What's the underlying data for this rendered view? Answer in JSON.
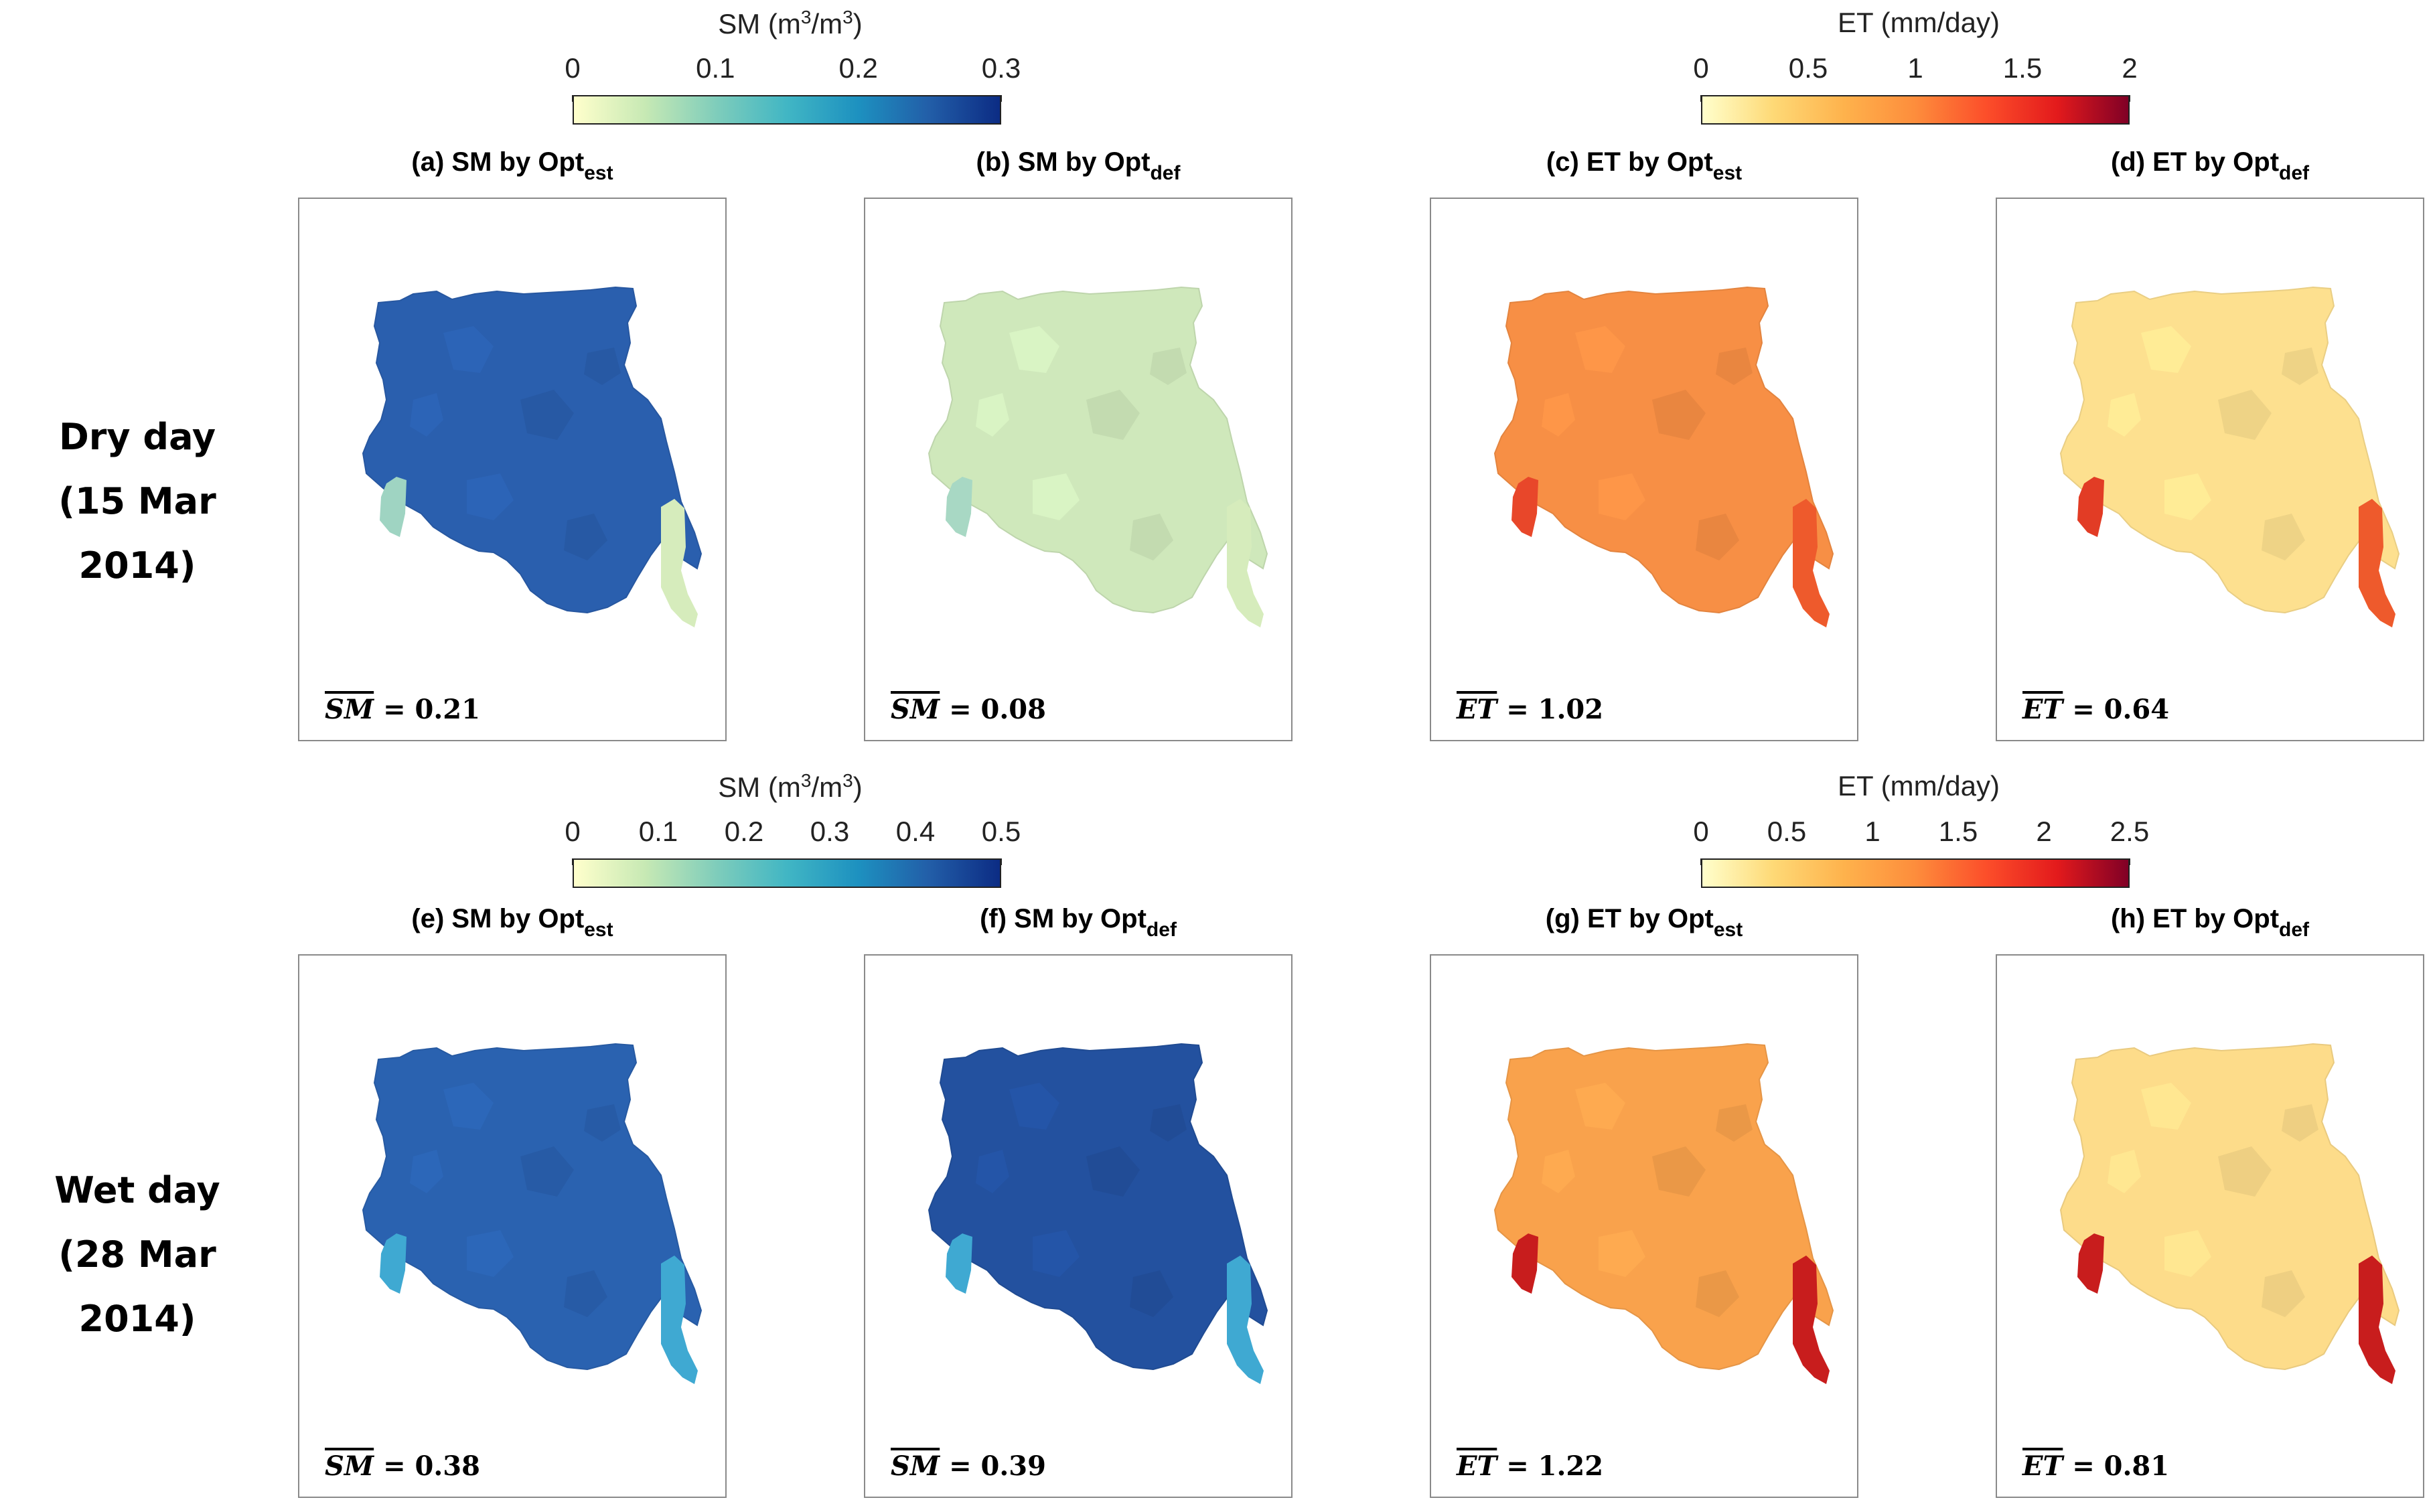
{
  "rows": [
    {
      "label_line1": "Dry day",
      "label_line2": "(15 Mar 2014)"
    },
    {
      "label_line1": "Wet day",
      "label_line2": "(28 Mar 2014)"
    }
  ],
  "colorbars": {
    "sm_dry": {
      "title": "SM (m",
      "title_sup": "3",
      "title_mid": "/m",
      "title_sup2": "3",
      "title_end": ")",
      "ticks": [
        "0",
        "0.1",
        "0.2",
        "0.3"
      ]
    },
    "et_dry": {
      "title": "ET (mm/day)",
      "ticks": [
        "0",
        "0.5",
        "1",
        "1.5",
        "2"
      ]
    },
    "sm_wet": {
      "title": "SM (m",
      "title_sup": "3",
      "title_mid": "/m",
      "title_sup2": "3",
      "title_end": ")",
      "ticks": [
        "0",
        "0.1",
        "0.2",
        "0.3",
        "0.4",
        "0.5"
      ]
    },
    "et_wet": {
      "title": "ET (mm/day)",
      "ticks": [
        "0",
        "0.5",
        "1",
        "1.5",
        "2",
        "2.5"
      ]
    }
  },
  "panels": [
    {
      "title": "(a) SM by Opt",
      "sub": "est",
      "mean_var": "SM",
      "mean_value": " = 0.21",
      "fill": "#2a5fae",
      "inset": "#9fd4c2",
      "inset_right": "#d6ecbc"
    },
    {
      "title": "(b) SM by Opt",
      "sub": "def",
      "mean_var": "SM",
      "mean_value": " = 0.08",
      "fill": "#cfe8bb",
      "inset": "#a8d8c4",
      "inset_right": "#d6ecbc"
    },
    {
      "title": "(c) ET by Opt",
      "sub": "est",
      "mean_var": "ET",
      "mean_value": " = 1.02",
      "fill": "#f78f45",
      "inset": "#e8472a",
      "inset_right": "#ee5a2c"
    },
    {
      "title": "(d) ET by Opt",
      "sub": "def",
      "mean_var": "ET",
      "mean_value": " = 0.64",
      "fill": "#fde08f",
      "inset": "#e23c25",
      "inset_right": "#ee5a2c"
    },
    {
      "title": "(e) SM by Opt",
      "sub": "est",
      "mean_var": "SM",
      "mean_value": " = 0.38",
      "fill": "#2a62b0",
      "inset": "#3fa9d2",
      "inset_right": "#3fa9d2"
    },
    {
      "title": "(f) SM by Opt",
      "sub": "def",
      "mean_var": "SM",
      "mean_value": " = 0.39",
      "fill": "#23519f",
      "inset": "#3fa9d2",
      "inset_right": "#3fa9d2"
    },
    {
      "title": "(g) ET by Opt",
      "sub": "est",
      "mean_var": "ET",
      "mean_value": " = 1.22",
      "fill": "#f9a24c",
      "inset": "#c81d1d",
      "inset_right": "#c81d1d"
    },
    {
      "title": "(h) ET by Opt",
      "sub": "def",
      "mean_var": "ET",
      "mean_value": " = 0.81",
      "fill": "#fddc8a",
      "inset": "#c81d1d",
      "inset_right": "#c81d1d"
    }
  ],
  "colors": {
    "sm_scale": [
      "#ffffcc",
      "#c7e9b4",
      "#7fcdbb",
      "#41b6c4",
      "#1d91c0",
      "#225ea8",
      "#0c2c84"
    ],
    "et_scale": [
      "#ffffcc",
      "#fed976",
      "#feb24c",
      "#fd8d3c",
      "#fc4e2a",
      "#e31a1c",
      "#800026"
    ]
  }
}
